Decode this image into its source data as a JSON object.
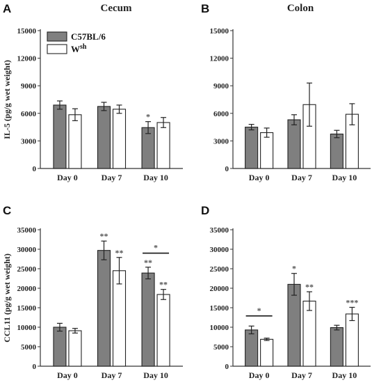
{
  "legend": [
    {
      "label": "C57BL/6",
      "color": "#808080"
    },
    {
      "label": "W",
      "sup": "sh",
      "color": "#ffffff"
    }
  ],
  "chart_data": [
    {
      "panel": "A",
      "type": "bar",
      "title": "Cecum",
      "ylabel": "IL-5 (pg/g wet weight)",
      "ylim": [
        0,
        15000
      ],
      "yticks": [
        0,
        3000,
        6000,
        9000,
        12000,
        15000
      ],
      "categories": [
        "Day 0",
        "Day 7",
        "Day 10"
      ],
      "series": [
        {
          "name": "C57BL/6",
          "values": [
            6900,
            6750,
            4450
          ],
          "errors": [
            450,
            450,
            650
          ]
        },
        {
          "name": "Wsh",
          "values": [
            5850,
            6450,
            5000
          ],
          "errors": [
            650,
            450,
            550
          ]
        }
      ],
      "annotations": [
        {
          "category": 2,
          "series": 0,
          "text": "*"
        }
      ],
      "brackets": []
    },
    {
      "panel": "B",
      "type": "bar",
      "title": "Colon",
      "ylabel": "",
      "ylim": [
        0,
        15000
      ],
      "yticks": [
        0,
        3000,
        6000,
        9000,
        12000,
        15000
      ],
      "categories": [
        "Day 0",
        "Day 7",
        "Day 10"
      ],
      "series": [
        {
          "name": "C57BL/6",
          "values": [
            4500,
            5300,
            3750
          ],
          "errors": [
            300,
            550,
            400
          ]
        },
        {
          "name": "Wsh",
          "values": [
            3900,
            6950,
            5900
          ],
          "errors": [
            500,
            2350,
            1150
          ]
        }
      ],
      "annotations": [],
      "brackets": []
    },
    {
      "panel": "C",
      "type": "bar",
      "title": "",
      "ylabel": "CCL11 (pg/g wet weight)",
      "ylim": [
        0,
        35000
      ],
      "yticks": [
        0,
        5000,
        10000,
        15000,
        20000,
        25000,
        30000,
        35000
      ],
      "categories": [
        "Day 0",
        "Day 7",
        "Day 10"
      ],
      "series": [
        {
          "name": "C57BL/6",
          "values": [
            10000,
            29700,
            23900
          ],
          "errors": [
            1000,
            2400,
            1500
          ]
        },
        {
          "name": "Wsh",
          "values": [
            9100,
            24500,
            18400
          ],
          "errors": [
            600,
            3400,
            1300
          ]
        }
      ],
      "annotations": [
        {
          "category": 1,
          "series": 0,
          "text": "**"
        },
        {
          "category": 1,
          "series": 1,
          "text": "**"
        },
        {
          "category": 2,
          "series": 0,
          "text": "**"
        },
        {
          "category": 2,
          "series": 1,
          "text": "**"
        }
      ],
      "brackets": [
        {
          "category": 2,
          "y": 29000,
          "text": "*"
        }
      ]
    },
    {
      "panel": "D",
      "type": "bar",
      "title": "",
      "ylabel": "",
      "ylim": [
        0,
        35000
      ],
      "yticks": [
        0,
        5000,
        10000,
        15000,
        20000,
        25000,
        30000,
        35000
      ],
      "categories": [
        "Day 0",
        "Day 7",
        "Day 10"
      ],
      "series": [
        {
          "name": "C57BL/6",
          "values": [
            9300,
            21000,
            9900
          ],
          "errors": [
            1000,
            2800,
            600
          ]
        },
        {
          "name": "Wsh",
          "values": [
            6900,
            16700,
            13400
          ],
          "errors": [
            300,
            2400,
            1700
          ]
        }
      ],
      "annotations": [
        {
          "category": 1,
          "series": 0,
          "text": "*"
        },
        {
          "category": 1,
          "series": 1,
          "text": "**"
        },
        {
          "category": 2,
          "series": 1,
          "text": "***"
        }
      ],
      "brackets": [
        {
          "category": 0,
          "y": 12900,
          "text": "*"
        }
      ]
    }
  ]
}
